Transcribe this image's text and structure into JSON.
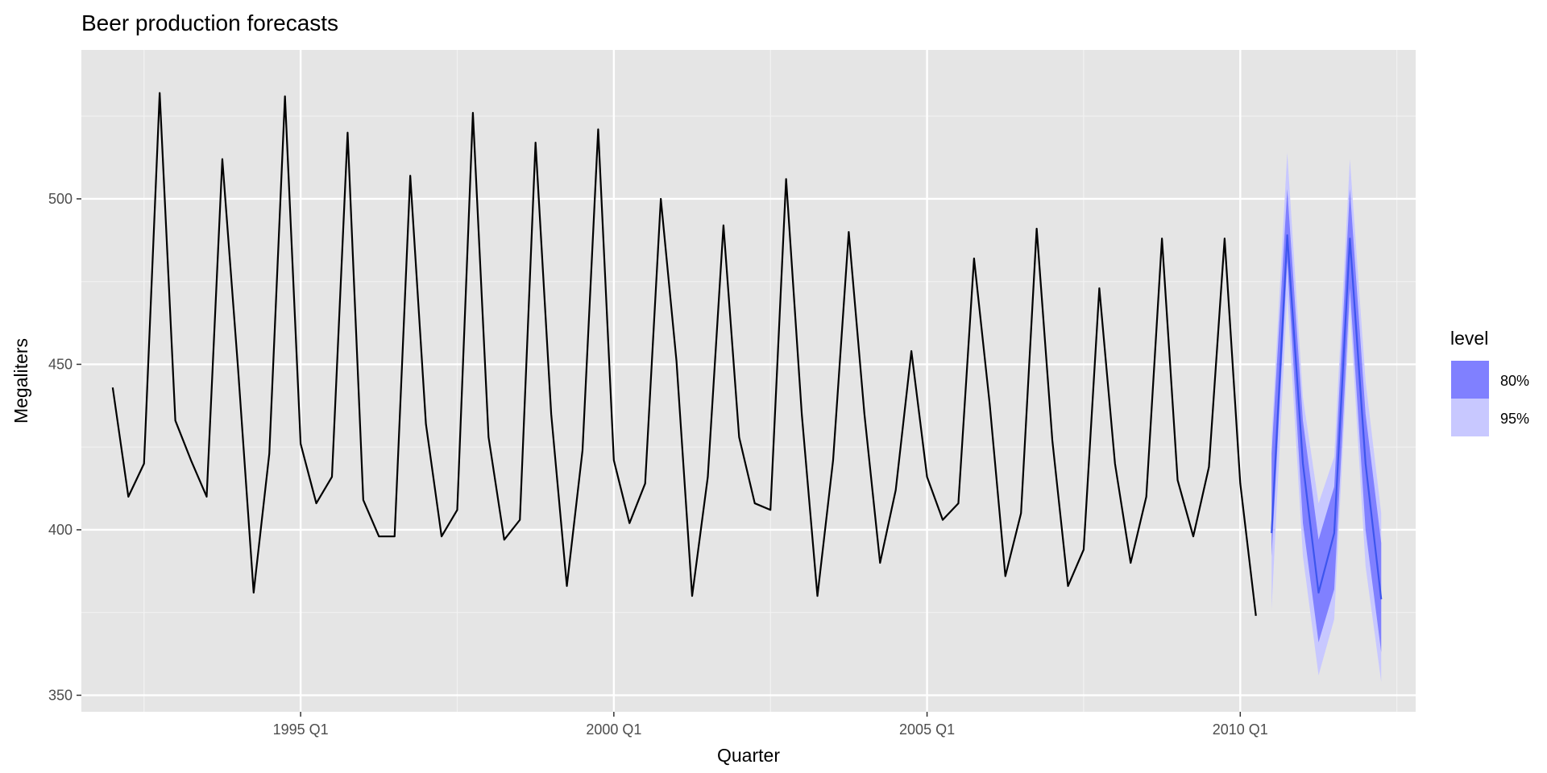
{
  "chart_data": {
    "type": "line",
    "title": "Beer production forecasts",
    "xlabel": "Quarter",
    "ylabel": "Megaliters",
    "xlim": [
      1991.5,
      2012.8
    ],
    "ylim": [
      345,
      545
    ],
    "y_ticks": [
      350,
      400,
      450,
      500
    ],
    "x_ticks": [
      {
        "value": 1995.0,
        "label": "1995 Q1"
      },
      {
        "value": 2000.0,
        "label": "2000 Q1"
      },
      {
        "value": 2005.0,
        "label": "2005 Q1"
      },
      {
        "value": 2010.0,
        "label": "2010 Q1"
      }
    ],
    "x_minor_ticks": [
      1992.5,
      1997.5,
      2002.5,
      2007.5,
      2012.5
    ],
    "grid": true,
    "series": [
      {
        "kind": "observed",
        "color": "#000000",
        "x_start": 1992.0,
        "x_step": 0.25,
        "values": [
          443,
          410,
          420,
          532,
          433,
          421,
          410,
          512,
          449,
          381,
          423,
          531,
          426,
          408,
          416,
          520,
          409,
          398,
          398,
          507,
          432,
          398,
          406,
          526,
          428,
          397,
          403,
          517,
          435,
          383,
          424,
          521,
          421,
          402,
          414,
          500,
          451,
          380,
          416,
          492,
          428,
          408,
          406,
          506,
          435,
          380,
          421,
          490,
          435,
          390,
          412,
          454,
          416,
          403,
          408,
          482,
          438,
          386,
          405,
          491,
          427,
          383,
          394,
          473,
          420,
          390,
          410,
          488,
          415,
          398,
          419,
          488,
          414,
          374
        ]
      }
    ],
    "forecast": {
      "x_start": 2010.5,
      "x_step": 0.25,
      "mean": [
        399,
        489,
        420,
        381,
        399,
        488,
        420,
        379
      ],
      "lower_80": [
        392,
        481,
        402,
        366,
        382,
        473,
        400,
        363
      ],
      "upper_80": [
        423,
        503,
        433,
        397,
        413,
        503,
        435,
        396
      ],
      "lower_95": [
        376,
        471,
        392,
        356,
        373,
        467,
        389,
        354
      ],
      "upper_95": [
        428,
        514,
        440,
        408,
        422,
        512,
        445,
        405
      ],
      "line_color": "#3d55ee",
      "band_80_color": "#8080ff",
      "band_95_color": "#c8c8ff"
    },
    "legend": {
      "title": "level",
      "position": "right",
      "entries": [
        {
          "label": "80%",
          "color": "#8080ff"
        },
        {
          "label": "95%",
          "color": "#c8c8ff"
        }
      ]
    }
  }
}
